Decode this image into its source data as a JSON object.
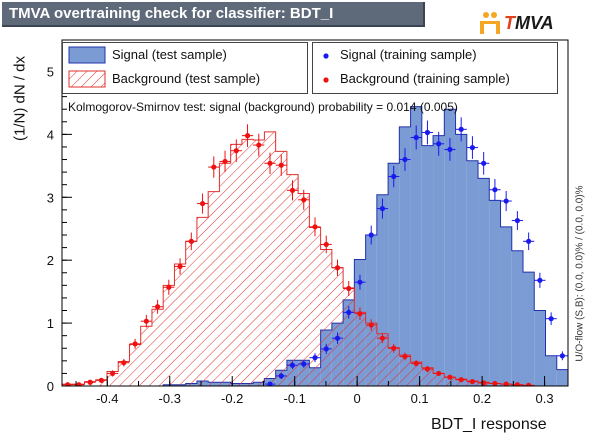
{
  "header": {
    "title": "TMVA overtraining check for classifier: BDT_I",
    "logo_prefix": "T",
    "logo_rest": "MVA"
  },
  "legend": {
    "signal_test": "Signal (test sample)",
    "background_test": "Background (test sample)",
    "signal_train": "Signal (training sample)",
    "background_train": "Background (training sample)"
  },
  "ks_text": "Kolmogorov-Smirnov test: signal (background) probability = 0.014 (0.005)",
  "overflow_text": "U/O-flow (S,B): (0.0, 0.0)% / (0.0, 0.0)%",
  "colors": {
    "signal_fill": "#7b9bd4",
    "signal_line": "#2233aa",
    "background_line": "#e0302e",
    "signal_points": "#1a1aee",
    "background_points": "#ee1111",
    "title_bar": "#5e6a7a"
  },
  "chart_data": {
    "type": "bar",
    "xlabel": "BDT_I response",
    "ylabel": "(1/N) dN / dx",
    "xlim": [
      -0.4725,
      0.3375
    ],
    "ylim": [
      0,
      5.5
    ],
    "xticks": [
      "-0.4",
      "-0.3",
      "-0.2",
      "-0.1",
      "0",
      "0.1",
      "0.2",
      "0.3"
    ],
    "yticks": [
      "0",
      "1",
      "2",
      "3",
      "4",
      "5"
    ],
    "bin_edges": [
      -0.4725,
      -0.4545,
      -0.4365,
      -0.4185,
      -0.4005,
      -0.3825,
      -0.3645,
      -0.3465,
      -0.3285,
      -0.3105,
      -0.2925,
      -0.2745,
      -0.2565,
      -0.2385,
      -0.2205,
      -0.2025,
      -0.1845,
      -0.1665,
      -0.1485,
      -0.1305,
      -0.1125,
      -0.0945,
      -0.0765,
      -0.0585,
      -0.0405,
      -0.0225,
      -0.0045,
      0.0135,
      0.0315,
      0.0495,
      0.0675,
      0.0855,
      0.1035,
      0.1215,
      0.1395,
      0.1575,
      0.1755,
      0.1935,
      0.2115,
      0.2295,
      0.2475,
      0.2655,
      0.2835,
      0.3015,
      0.3195,
      0.3375
    ],
    "series": [
      {
        "name": "Signal (test sample)",
        "style": "filled",
        "values": [
          0,
          0,
          0,
          0,
          0,
          0,
          0,
          0,
          0,
          0.02,
          0.02,
          0.04,
          0.08,
          0.06,
          0.06,
          0.04,
          0.04,
          0.06,
          0.12,
          0.25,
          0.41,
          0.41,
          0.29,
          0.89,
          1.0,
          1.37,
          2.01,
          2.4,
          3.04,
          3.54,
          4.12,
          4.44,
          3.82,
          3.98,
          4.4,
          4.0,
          3.58,
          3.3,
          2.95,
          2.53,
          2.15,
          1.81,
          1.2,
          0.48,
          0.26
        ]
      },
      {
        "name": "Background (test sample)",
        "style": "hatched",
        "values": [
          0.03,
          0.03,
          0.07,
          0.1,
          0.23,
          0.39,
          0.66,
          0.95,
          1.22,
          1.6,
          1.94,
          2.3,
          2.68,
          3.09,
          3.54,
          3.84,
          3.92,
          3.91,
          4.04,
          3.73,
          3.36,
          3.06,
          2.52,
          2.17,
          1.88,
          1.56,
          1.17,
          1.0,
          0.83,
          0.61,
          0.49,
          0.38,
          0.29,
          0.2,
          0.14,
          0.11,
          0.08,
          0.06,
          0.04,
          0.03,
          0.02,
          0.01,
          0.0,
          0.0,
          0.0
        ]
      },
      {
        "name": "Signal (training sample)",
        "style": "points",
        "values": [
          0,
          0,
          0,
          0,
          0,
          0,
          0,
          0,
          0,
          0,
          0,
          0,
          0,
          0,
          0,
          0,
          0,
          0,
          0.03,
          0.16,
          0.33,
          0.35,
          0.45,
          0.59,
          0.76,
          1.17,
          1.65,
          2.4,
          2.82,
          3.33,
          3.6,
          3.95,
          4.03,
          3.85,
          3.76,
          4.08,
          3.79,
          3.54,
          3.12,
          2.94,
          2.63,
          2.3,
          1.68,
          1.07,
          0.48
        ],
        "errors": [
          0,
          0,
          0,
          0,
          0,
          0,
          0,
          0,
          0,
          0,
          0,
          0,
          0,
          0,
          0,
          0,
          0,
          0,
          0.02,
          0.05,
          0.06,
          0.06,
          0.07,
          0.08,
          0.09,
          0.1,
          0.12,
          0.15,
          0.16,
          0.17,
          0.18,
          0.19,
          0.19,
          0.19,
          0.18,
          0.19,
          0.18,
          0.18,
          0.17,
          0.16,
          0.15,
          0.14,
          0.12,
          0.1,
          0.07
        ]
      },
      {
        "name": "Background (training sample)",
        "style": "points",
        "values": [
          0.02,
          0.02,
          0.06,
          0.09,
          0.2,
          0.37,
          0.67,
          1.03,
          1.26,
          1.57,
          1.9,
          2.3,
          2.9,
          3.48,
          3.57,
          3.74,
          3.98,
          3.83,
          3.54,
          3.51,
          3.11,
          2.96,
          2.53,
          2.25,
          1.88,
          1.55,
          1.15,
          0.97,
          0.76,
          0.6,
          0.47,
          0.36,
          0.27,
          0.2,
          0.14,
          0.1,
          0.07,
          0.05,
          0.04,
          0.03,
          0.02,
          0.01,
          0.0,
          0.0,
          0.0
        ],
        "errors": [
          0.01,
          0.01,
          0.02,
          0.03,
          0.05,
          0.06,
          0.08,
          0.1,
          0.11,
          0.12,
          0.13,
          0.14,
          0.16,
          0.17,
          0.17,
          0.18,
          0.18,
          0.18,
          0.17,
          0.17,
          0.16,
          0.16,
          0.15,
          0.14,
          0.13,
          0.12,
          0.1,
          0.09,
          0.08,
          0.07,
          0.06,
          0.05,
          0.05,
          0.04,
          0.03,
          0.03,
          0.02,
          0.02,
          0.02,
          0.01,
          0.01,
          0.01,
          0,
          0,
          0
        ]
      }
    ]
  }
}
